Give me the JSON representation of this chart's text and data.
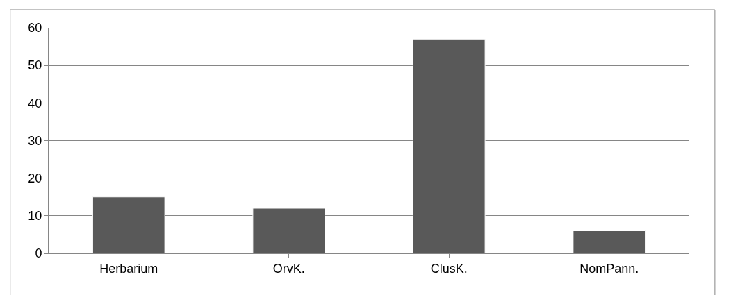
{
  "chart_data": {
    "type": "bar",
    "categories": [
      "Herbarium",
      "OrvK.",
      "ClusK.",
      "NomPann."
    ],
    "values": [
      15,
      12,
      57,
      6
    ],
    "color": "#595959",
    "ylim": [
      0,
      60
    ],
    "yticks": [
      0,
      10,
      20,
      30,
      40,
      50,
      60
    ],
    "grid": "y"
  }
}
